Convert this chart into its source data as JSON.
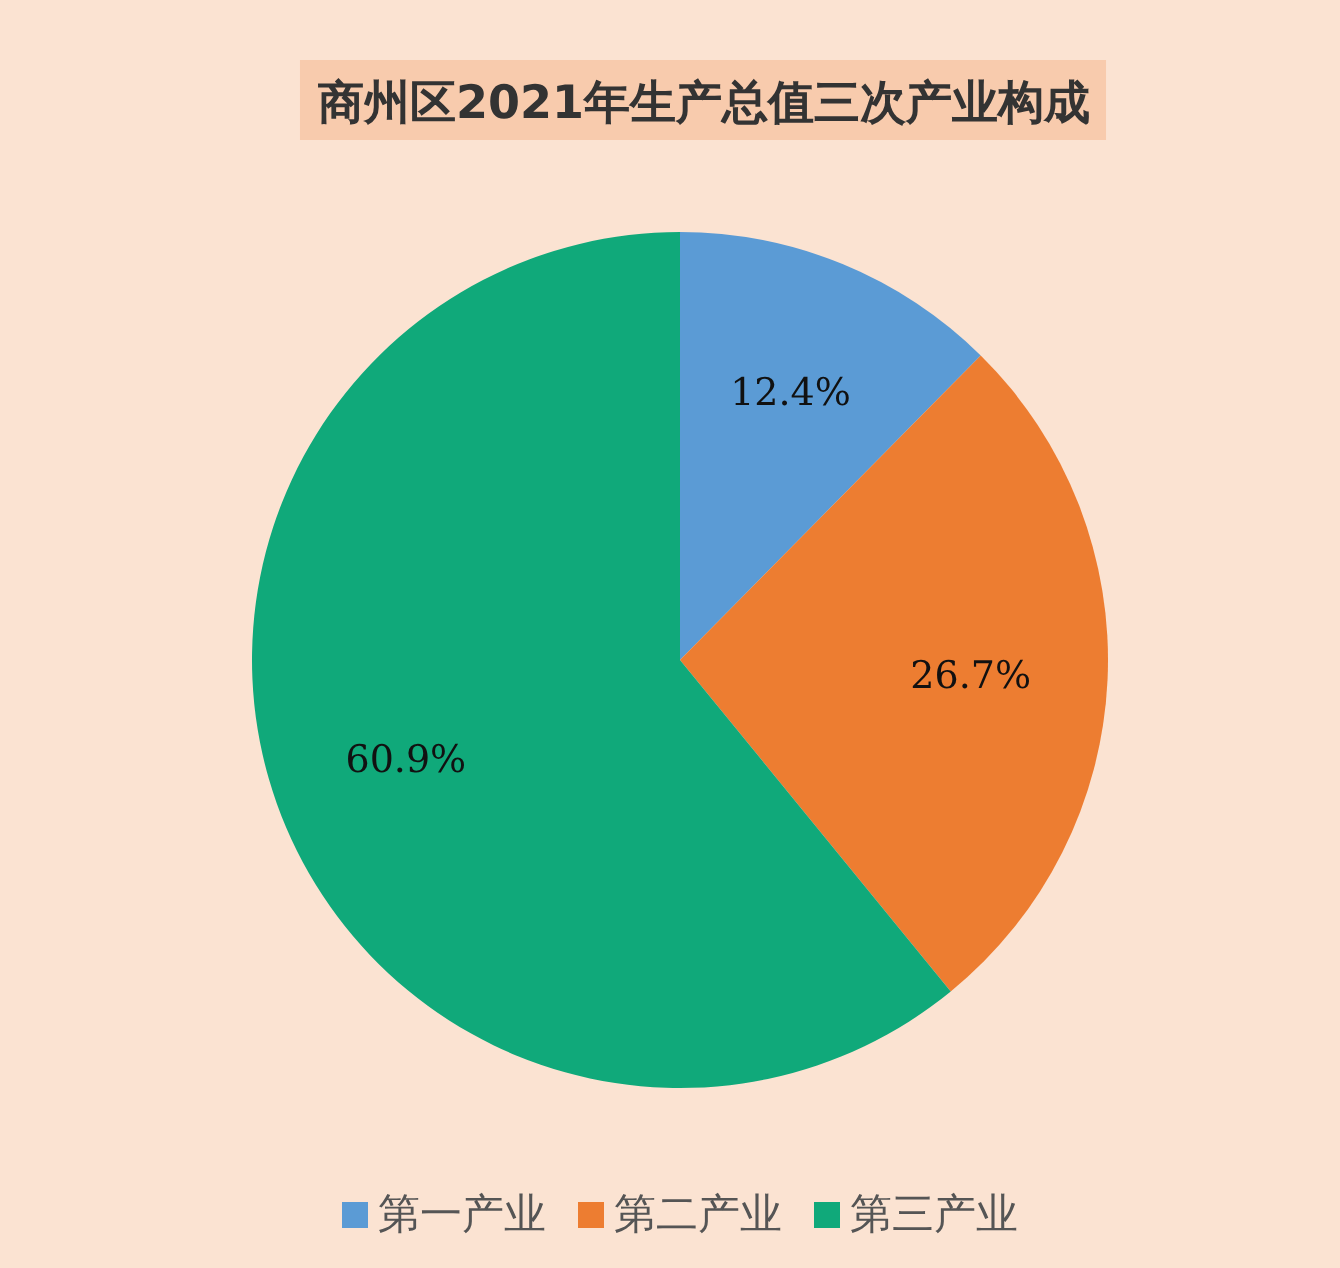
{
  "chart_data": {
    "type": "pie",
    "title": "商州区2021年生产总值三次产业构成",
    "categories": [
      "第一产业",
      "第二产业",
      "第三产业"
    ],
    "values": [
      12.4,
      26.7,
      60.9
    ],
    "colors": [
      "#5b9bd5",
      "#ed7d31",
      "#10a97a"
    ],
    "value_labels": [
      "12.4%",
      "26.7%",
      "60.9%"
    ],
    "legend": "bottom"
  }
}
